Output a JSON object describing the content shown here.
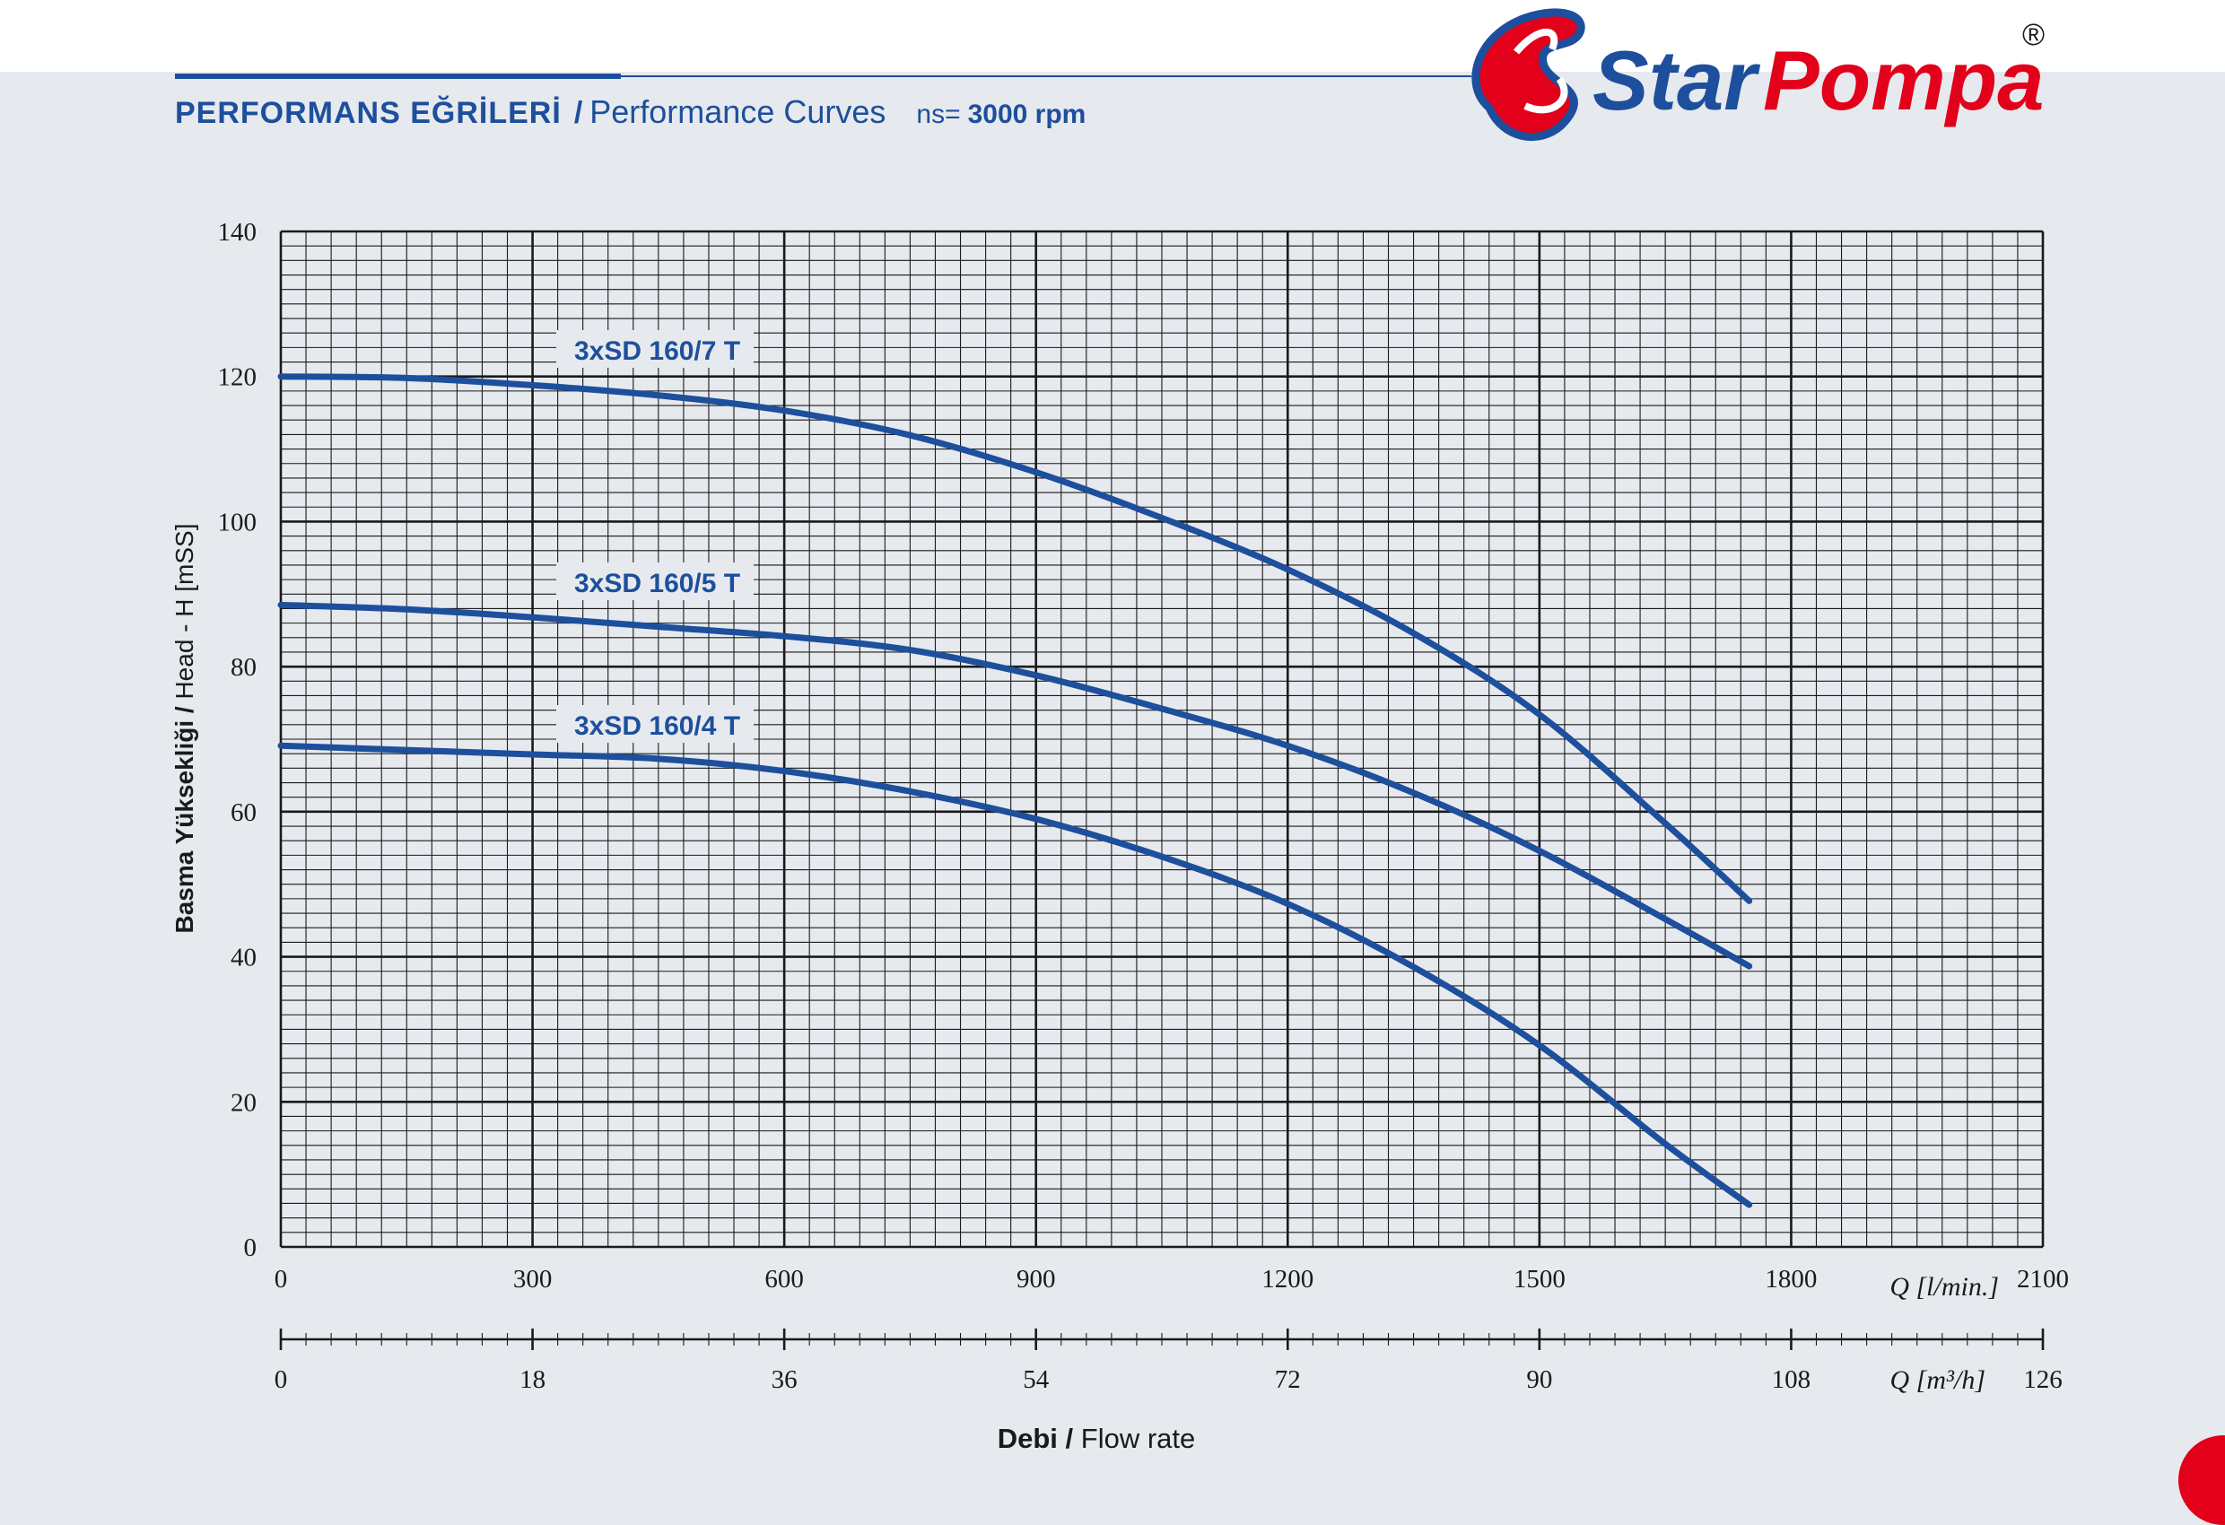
{
  "header": {
    "title_tr": "PERFORMANS EĞRİLERİ",
    "separator": "/",
    "title_en": "Performance Curves",
    "speed_prefix": "ns=",
    "speed_value": "3000 rpm"
  },
  "logo": {
    "text_star": "Star",
    "text_pompa": "Pompa",
    "registered": "®",
    "colors": {
      "blue": "#1d4f9c",
      "red": "#e2001a"
    }
  },
  "colors": {
    "curve": "#1d4f9c",
    "grid": "#1a1a1a",
    "background": "#e6e9ee"
  },
  "chart_data": {
    "type": "line",
    "ylabel_tr": "Basma Yüksekliği",
    "ylabel_en": "Head - H [mSS]",
    "ylabel_sep": "/",
    "xlabel_tr": "Debi",
    "xlabel_en": "Flow rate",
    "xlabel_sep": "/",
    "x_unit_label": "Q [l/min.]",
    "x2_unit_label": "Q [m³/h]",
    "xlim": [
      0,
      2100
    ],
    "ylim": [
      0,
      140
    ],
    "x_ticks": [
      "0",
      "300",
      "600",
      "900",
      "1200",
      "1500",
      "1800",
      "2100"
    ],
    "x2_ticks": [
      "0",
      "18",
      "36",
      "54",
      "72",
      "90",
      "108",
      "126"
    ],
    "y_ticks": [
      "0",
      "20",
      "40",
      "60",
      "80",
      "100",
      "120",
      "140"
    ],
    "grid": true,
    "series": [
      {
        "name": "3xSD 160/7 T",
        "x": [
          0,
          150,
          300,
          450,
          600,
          750,
          900,
          1050,
          1200,
          1350,
          1500,
          1650,
          1750
        ],
        "y": [
          120,
          119.8,
          118.8,
          117.4,
          115.3,
          111.9,
          106.8,
          100.5,
          93.4,
          84.6,
          73.4,
          58.4,
          47.7
        ]
      },
      {
        "name": "3xSD 160/5 T",
        "x": [
          0,
          150,
          300,
          450,
          600,
          750,
          900,
          1050,
          1200,
          1350,
          1500,
          1650,
          1750
        ],
        "y": [
          88.5,
          87.9,
          86.8,
          85.5,
          84.2,
          82.3,
          78.8,
          74.2,
          69.1,
          62.6,
          54.6,
          45.2,
          38.7
        ]
      },
      {
        "name": "3xSD 160/4 T",
        "x": [
          0,
          150,
          300,
          450,
          600,
          750,
          900,
          1050,
          1200,
          1350,
          1500,
          1650,
          1750
        ],
        "y": [
          69.1,
          68.5,
          67.9,
          67.3,
          65.6,
          62.8,
          59.0,
          53.8,
          47.3,
          38.6,
          27.8,
          14.2,
          5.8
        ]
      }
    ]
  }
}
